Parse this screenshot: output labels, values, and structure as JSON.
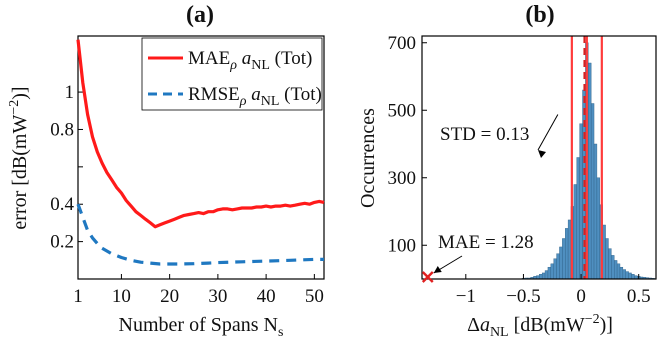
{
  "chart_data": [
    {
      "panel_label": "(a)",
      "type": "line",
      "xlabel": "Number of Spans N_s",
      "ylabel": "error  [dB(mW^-2)]",
      "xlim": [
        1,
        52
      ],
      "ylim": [
        0,
        1.3
      ],
      "xticks": [
        1,
        10,
        20,
        30,
        40,
        50
      ],
      "yticks": [
        0.2,
        0.4,
        0.6,
        0.8,
        1
      ],
      "yticks_labelled": [
        0.2,
        0.4,
        0.8,
        1
      ],
      "grid": false,
      "legend_position": "top-right",
      "series": [
        {
          "name": "MAE_ρ a_NL (Tot)",
          "color": "#ff1a1a",
          "style": "solid",
          "x": [
            1,
            2,
            3,
            4,
            5,
            6,
            7,
            8,
            9,
            10,
            11,
            12,
            13,
            14,
            15,
            16,
            17,
            18,
            19,
            20,
            21,
            22,
            23,
            24,
            25,
            26,
            27,
            28,
            29,
            30,
            31,
            32,
            33,
            34,
            35,
            36,
            37,
            38,
            39,
            40,
            41,
            42,
            43,
            44,
            45,
            46,
            47,
            48,
            49,
            50,
            51,
            52
          ],
          "y": [
            1.28,
            1.05,
            0.88,
            0.76,
            0.68,
            0.62,
            0.57,
            0.53,
            0.49,
            0.46,
            0.42,
            0.39,
            0.36,
            0.34,
            0.32,
            0.3,
            0.28,
            0.29,
            0.3,
            0.31,
            0.32,
            0.33,
            0.34,
            0.345,
            0.35,
            0.355,
            0.35,
            0.36,
            0.36,
            0.37,
            0.375,
            0.375,
            0.37,
            0.375,
            0.38,
            0.38,
            0.38,
            0.385,
            0.385,
            0.39,
            0.385,
            0.39,
            0.39,
            0.395,
            0.39,
            0.395,
            0.4,
            0.405,
            0.4,
            0.41,
            0.415,
            0.41
          ]
        },
        {
          "name": "RMSE_ρ a_NL (Tot)",
          "color": "#1f78c1",
          "style": "dashed",
          "x": [
            1,
            2,
            3,
            4,
            5,
            6,
            7,
            8,
            9,
            10,
            12,
            14,
            16,
            18,
            20,
            22,
            25,
            28,
            30,
            35,
            40,
            45,
            50,
            52
          ],
          "y": [
            0.4,
            0.33,
            0.26,
            0.22,
            0.19,
            0.165,
            0.15,
            0.135,
            0.125,
            0.115,
            0.1,
            0.09,
            0.085,
            0.08,
            0.08,
            0.08,
            0.082,
            0.085,
            0.088,
            0.092,
            0.096,
            0.1,
            0.105,
            0.105
          ]
        }
      ],
      "legend_entries": [
        {
          "main": "MAE",
          "sub": "ρ",
          "var": "a",
          "varsub": "NL",
          "tail": "(Tot)"
        },
        {
          "main": "RMSE",
          "sub": "ρ",
          "var": "a",
          "varsub": "NL",
          "tail": "(Tot)"
        }
      ],
      "xlabel_parts": {
        "main": "Number of Spans N",
        "sub": "s"
      },
      "ylabel_parts": {
        "main": "error  [dB(mW",
        "sup": "−2",
        "tail": ")]"
      }
    },
    {
      "panel_label": "(b)",
      "type": "bar",
      "xlabel": "Δa_NL [dB(mW^-2)]",
      "ylabel": "Occurrences",
      "xlim": [
        -1.38,
        0.65
      ],
      "ylim": [
        0,
        720
      ],
      "xticks": [
        -1,
        -0.5,
        0,
        0.5
      ],
      "xtick_labels": [
        "−1",
        "−0.5",
        "0",
        "0.5"
      ],
      "yticks": [
        100,
        300,
        500,
        700
      ],
      "grid": false,
      "bar_color": "#4f8fc0",
      "bin_width": 0.025,
      "bins": [
        {
          "x": -0.5,
          "v": 2
        },
        {
          "x": -0.475,
          "v": 3
        },
        {
          "x": -0.45,
          "v": 3
        },
        {
          "x": -0.425,
          "v": 5
        },
        {
          "x": -0.4,
          "v": 8
        },
        {
          "x": -0.375,
          "v": 10
        },
        {
          "x": -0.35,
          "v": 14
        },
        {
          "x": -0.325,
          "v": 18
        },
        {
          "x": -0.3,
          "v": 25
        },
        {
          "x": -0.275,
          "v": 35
        },
        {
          "x": -0.25,
          "v": 45
        },
        {
          "x": -0.225,
          "v": 60
        },
        {
          "x": -0.2,
          "v": 75
        },
        {
          "x": -0.175,
          "v": 95
        },
        {
          "x": -0.15,
          "v": 120
        },
        {
          "x": -0.125,
          "v": 150
        },
        {
          "x": -0.1,
          "v": 175
        },
        {
          "x": -0.075,
          "v": 215
        },
        {
          "x": -0.05,
          "v": 280
        },
        {
          "x": -0.025,
          "v": 360
        },
        {
          "x": 0.0,
          "v": 460
        },
        {
          "x": 0.025,
          "v": 560
        },
        {
          "x": 0.05,
          "v": 700
        },
        {
          "x": 0.075,
          "v": 640
        },
        {
          "x": 0.1,
          "v": 520
        },
        {
          "x": 0.125,
          "v": 400
        },
        {
          "x": 0.15,
          "v": 300
        },
        {
          "x": 0.175,
          "v": 220
        },
        {
          "x": 0.2,
          "v": 160
        },
        {
          "x": 0.225,
          "v": 120
        },
        {
          "x": 0.25,
          "v": 90
        },
        {
          "x": 0.275,
          "v": 70
        },
        {
          "x": 0.3,
          "v": 55
        },
        {
          "x": 0.325,
          "v": 45
        },
        {
          "x": 0.35,
          "v": 35
        },
        {
          "x": 0.375,
          "v": 28
        },
        {
          "x": 0.4,
          "v": 22
        },
        {
          "x": 0.425,
          "v": 18
        },
        {
          "x": 0.45,
          "v": 14
        },
        {
          "x": 0.475,
          "v": 10
        },
        {
          "x": 0.5,
          "v": 8
        },
        {
          "x": 0.525,
          "v": 6
        },
        {
          "x": 0.55,
          "v": 5
        },
        {
          "x": 0.575,
          "v": 4
        },
        {
          "x": 0.6,
          "v": 3
        },
        {
          "x": 0.625,
          "v": 2
        }
      ],
      "vertical_lines": [
        {
          "x": -0.08,
          "color": "#ff3b3b",
          "style": "solid"
        },
        {
          "x": 0.05,
          "color": "#ff3b3b",
          "style": "solid"
        },
        {
          "x": 0.18,
          "color": "#ff3b3b",
          "style": "solid"
        },
        {
          "x": 0.03,
          "color": "#d62020",
          "style": "dashed"
        }
      ],
      "outlier_marker": {
        "x": -1.33,
        "y": 0,
        "color": "#e02020",
        "symbol": "x"
      },
      "annotations": [
        {
          "text": "STD = 0.13",
          "target_x": -0.08,
          "target_y": 280
        },
        {
          "text": "MAE = 1.28",
          "target_x": -1.33,
          "target_y": 0
        }
      ],
      "xlabel_parts": {
        "main": "Δ",
        "var": "a",
        "varsub": "NL",
        "tail": " [dB(mW",
        "sup": "−2",
        "end": ")]"
      }
    }
  ]
}
